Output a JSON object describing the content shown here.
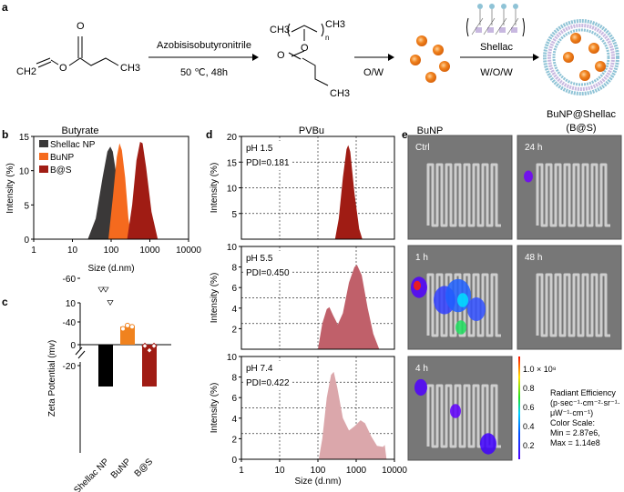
{
  "panel_a": {
    "letter": "a",
    "butyrate_label": "Butyrate",
    "pvbu_label": "PVBu",
    "bunp_label": "BuNP",
    "bs_label": "BuNP@Shellac",
    "bs_abbrev": "(B@S)",
    "step1_top": "Azobisisobutyronitrile",
    "step1_bottom": "50 ℃, 48h",
    "step2": "O/W",
    "step3_top": "Shellac",
    "step3_bottom": "W/O/W",
    "chem": {
      "ch2": "CH2",
      "ch3": "CH3",
      "o": "O",
      "n": "n"
    },
    "colors": {
      "nanoparticle": "#f0821e",
      "shell_outer": "#8fc3d6",
      "shell_inner": "#c8b8e0"
    }
  },
  "chart_data": [
    {
      "panel": "b",
      "type": "area",
      "xlabel": "Size (d.nm)",
      "ylabel": "Intensity (%)",
      "xscale": "log",
      "xlim": [
        1,
        10000
      ],
      "ylim": [
        0,
        15
      ],
      "xticks": [
        "1",
        "10",
        "100",
        "1000",
        "10000"
      ],
      "yticks": [
        "0",
        "5",
        "10",
        "15"
      ],
      "legend": "top-left",
      "series": [
        {
          "name": "Shellac NP",
          "color": "#3a3838",
          "x": [
            25,
            40,
            60,
            80,
            95,
            110,
            140,
            180,
            220
          ],
          "y": [
            0,
            3,
            9,
            12.8,
            13.5,
            12.8,
            9,
            3,
            0
          ]
        },
        {
          "name": "BuNP",
          "color": "#f56a1e",
          "x": [
            85,
            110,
            140,
            165,
            190,
            230,
            280,
            340
          ],
          "y": [
            0,
            6,
            12,
            14,
            13,
            9,
            3,
            0
          ]
        },
        {
          "name": "B@S",
          "color": "#a01c14",
          "x": [
            260,
            350,
            450,
            560,
            650,
            800,
            1100,
            1600
          ],
          "y": [
            0,
            5,
            11.5,
            14.2,
            14,
            10.5,
            4,
            0
          ]
        }
      ]
    },
    {
      "panel": "c",
      "type": "bar",
      "ylabel": "Zeta Potential (mv)",
      "categories": [
        "Shellac NP",
        "BuNP",
        "B@S"
      ],
      "yticks": [
        "10",
        "0",
        "-20",
        "-40",
        "-60"
      ],
      "axis_break": [
        -10,
        -20
      ],
      "values": [
        -53,
        4.3,
        -27
      ],
      "points": [
        [
          -55,
          -55,
          -49
        ],
        [
          3.8,
          4.6,
          4.3
        ],
        [
          -29,
          -27,
          -29
        ]
      ],
      "colors": [
        "#000000",
        "#f0821e",
        "#a01c14"
      ]
    },
    {
      "panel": "d",
      "type": "area",
      "xlabel": "Size (d.nm)",
      "ylabel": "Intensity (%)",
      "xscale": "log",
      "xlim": [
        1,
        10000
      ],
      "xticks": [
        "1",
        "10",
        "100",
        "1000",
        "10000"
      ],
      "grid": true,
      "subplots": [
        {
          "label": "pH 1.5",
          "pdi": "PDI=0.181",
          "color": "#a01c14",
          "ylim": [
            0,
            20
          ],
          "yticks": [
            "5",
            "10",
            "15",
            "20"
          ],
          "x": [
            280,
            350,
            450,
            560,
            620,
            700,
            900,
            1200,
            1450
          ],
          "y": [
            0,
            4,
            12,
            17.5,
            18.3,
            17,
            9,
            2,
            0
          ]
        },
        {
          "label": "pH 5.5",
          "pdi": "PDI=0.450",
          "color": "#c0606a",
          "ylim": [
            0,
            10
          ],
          "yticks": [
            "2",
            "4",
            "6",
            "8",
            "10"
          ],
          "x": [
            100,
            130,
            170,
            200,
            250,
            330,
            450,
            650,
            900,
            1050,
            1400,
            2000,
            2800,
            4000
          ],
          "y": [
            0,
            2.5,
            3.9,
            4.1,
            3.3,
            2.4,
            3.5,
            6.5,
            8,
            8.2,
            7.2,
            4,
            1.5,
            0
          ]
        },
        {
          "label": "pH 7.4",
          "pdi": "PDI=0.422",
          "color": "#dba7ab",
          "ylim": [
            0,
            10
          ],
          "yticks": [
            "0",
            "2",
            "4",
            "6",
            "8",
            "10"
          ],
          "x": [
            105,
            130,
            170,
            220,
            260,
            320,
            450,
            650,
            900,
            1300,
            1700,
            2500,
            3500,
            5000,
            5600,
            6200
          ],
          "y": [
            0,
            2,
            6,
            8.2,
            8.5,
            7,
            4,
            2.8,
            3.2,
            3.8,
            3.5,
            2.2,
            1.3,
            1.2,
            1.4,
            0
          ]
        }
      ]
    }
  ],
  "panel_e": {
    "letter": "e",
    "images": [
      {
        "label": "Ctrl",
        "signal": "none"
      },
      {
        "label": "24 h",
        "signal": "weak"
      },
      {
        "label": "1 h",
        "signal": "strong"
      },
      {
        "label": "48 h",
        "signal": "none"
      },
      {
        "label": "4 h",
        "signal": "moderate"
      }
    ],
    "colorbar": {
      "ticks": [
        "1.0 × 10⁸",
        "0.8",
        "0.6",
        "0.4",
        "0.2"
      ],
      "title_lines": [
        "Radiant Efficiency",
        "(p·sec⁻¹·cm⁻²·sr⁻¹·",
        "μW⁻¹·cm⁻¹)",
        "Color Scale:",
        "Min = 2.87e6,",
        "Max = 1.14e8"
      ]
    }
  },
  "letters": {
    "b": "b",
    "c": "c",
    "d": "d"
  }
}
